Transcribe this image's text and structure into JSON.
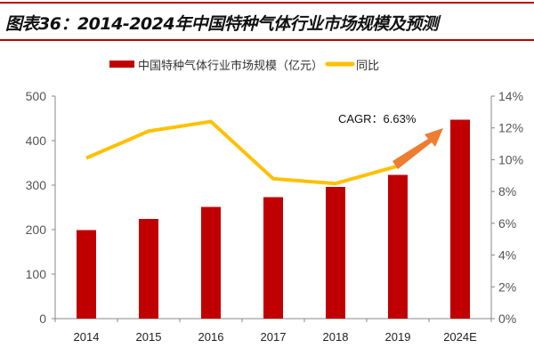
{
  "title": "图表36：2014-2024年中国特种气体行业市场规模及预测",
  "chart_data": {
    "type": "bar+line",
    "categories": [
      "2014",
      "2015",
      "2016",
      "2017",
      "2018",
      "2019",
      "2024E"
    ],
    "series": [
      {
        "name": "中国特种气体行业市场规模（亿元）",
        "type": "bar",
        "axis": "left",
        "color": "#c00000",
        "values": [
          199,
          224,
          251,
          273,
          296,
          323,
          447
        ]
      },
      {
        "name": "同比",
        "type": "line",
        "axis": "right",
        "color": "#ffc000",
        "values": [
          10.1,
          11.8,
          12.4,
          8.8,
          8.5,
          9.6,
          null
        ]
      }
    ],
    "left_axis": {
      "ylim": [
        0,
        500
      ],
      "ticks": [
        "0",
        "100",
        "200",
        "300",
        "400",
        "500"
      ]
    },
    "right_axis": {
      "ylim": [
        0,
        14
      ],
      "ticks": [
        "0%",
        "2%",
        "4%",
        "6%",
        "8%",
        "10%",
        "12%",
        "14%"
      ]
    },
    "annotation": {
      "text": "CAGR：6.63%",
      "arrow_color": "#ed7d31"
    },
    "legend": "top",
    "grid": false
  }
}
